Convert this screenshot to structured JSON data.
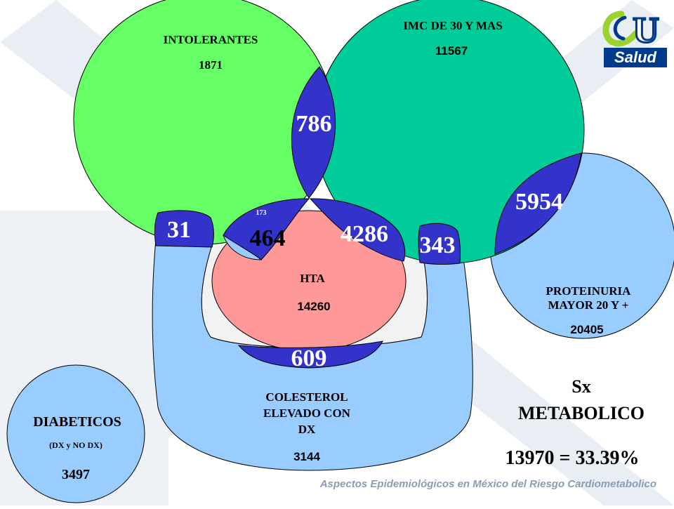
{
  "sets": {
    "intolerantes": {
      "label": "INTOLERANTES",
      "value": "1871",
      "color": "#66FF66"
    },
    "imc": {
      "label": "IMC DE 30 Y MAS",
      "value": "11567",
      "color": "#00CC99"
    },
    "proteinuria": {
      "label_line1": "PROTEINURIA",
      "label_line2": "MAYOR 20 Y +",
      "value": "20405",
      "color": "#99CCFF"
    },
    "hta": {
      "label": "HTA",
      "value": "14260",
      "color": "#FF9999"
    },
    "colesterol": {
      "label_line1": "COLESTEROL",
      "label_line2": "ELEVADO CON",
      "label_line3": "DX",
      "value": "3144",
      "color": "#99CCFF"
    },
    "diabeticos": {
      "label": "DIABETICOS",
      "sublabel": "(DX y NO DX)",
      "value": "3497",
      "color": "#99CCFF"
    }
  },
  "intersections": {
    "intol_imc": "786",
    "imc_proteinuria": "5954",
    "intol_col": "31",
    "intol_hta_small": "173",
    "intol_hta": "464",
    "imc_hta": "4286",
    "imc_col": "343",
    "hta_col": "609",
    "overlap_color": "#3333CC"
  },
  "summary": {
    "line1": "Sx",
    "line2": "METABOLICO",
    "result": "13970 = 33.39%"
  },
  "footer": "Aspectos Epidemiológicos en México del Riesgo Cardiometabolico",
  "logo": {
    "letter": "U",
    "word": "Salud"
  }
}
